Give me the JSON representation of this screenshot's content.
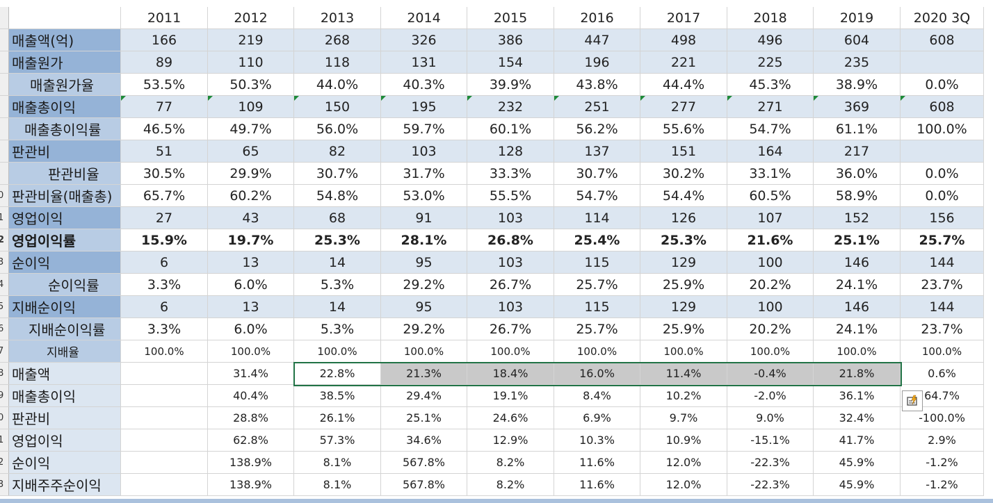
{
  "columns": [
    "2011",
    "2012",
    "2013",
    "2014",
    "2015",
    "2016",
    "2017",
    "2018",
    "2019",
    "2020 3Q"
  ],
  "rows": [
    {
      "num": "",
      "label": "매출액(억)",
      "values": [
        "166",
        "219",
        "268",
        "326",
        "386",
        "447",
        "498",
        "496",
        "604",
        "608"
      ]
    },
    {
      "num": "",
      "label": "매출원가",
      "values": [
        "89",
        "110",
        "118",
        "131",
        "154",
        "196",
        "221",
        "225",
        "235",
        ""
      ]
    },
    {
      "num": "",
      "label": "매출원가율",
      "values": [
        "53.5%",
        "50.3%",
        "44.0%",
        "40.3%",
        "39.9%",
        "43.8%",
        "44.4%",
        "45.3%",
        "38.9%",
        "0.0%"
      ]
    },
    {
      "num": "",
      "label": "매출총이익",
      "values": [
        "77",
        "109",
        "150",
        "195",
        "232",
        "251",
        "277",
        "271",
        "369",
        "608"
      ]
    },
    {
      "num": "",
      "label": "매출총이익률",
      "values": [
        "46.5%",
        "49.7%",
        "56.0%",
        "59.7%",
        "60.1%",
        "56.2%",
        "55.6%",
        "54.7%",
        "61.1%",
        "100.0%"
      ]
    },
    {
      "num": "",
      "label": "판관비",
      "values": [
        "51",
        "65",
        "82",
        "103",
        "128",
        "137",
        "151",
        "164",
        "217",
        ""
      ]
    },
    {
      "num": "",
      "label": "판관비율",
      "values": [
        "30.5%",
        "29.9%",
        "30.7%",
        "31.7%",
        "33.3%",
        "30.7%",
        "30.2%",
        "33.1%",
        "36.0%",
        "0.0%"
      ]
    },
    {
      "num": "0",
      "label": "판관비율(매출총)",
      "values": [
        "65.7%",
        "60.2%",
        "54.8%",
        "53.0%",
        "55.5%",
        "54.7%",
        "54.4%",
        "60.5%",
        "58.9%",
        "0.0%"
      ]
    },
    {
      "num": "1",
      "label": "영업이익",
      "values": [
        "27",
        "43",
        "68",
        "91",
        "103",
        "114",
        "126",
        "107",
        "152",
        "156"
      ]
    },
    {
      "num": "2",
      "label": "영업이익률",
      "values": [
        "15.9%",
        "19.7%",
        "25.3%",
        "28.1%",
        "26.8%",
        "25.4%",
        "25.3%",
        "21.6%",
        "25.1%",
        "25.7%"
      ]
    },
    {
      "num": "3",
      "label": "순이익",
      "values": [
        "6",
        "13",
        "14",
        "95",
        "103",
        "115",
        "129",
        "100",
        "146",
        "144"
      ]
    },
    {
      "num": "4",
      "label": "순이익률",
      "values": [
        "3.3%",
        "6.0%",
        "5.3%",
        "29.2%",
        "26.7%",
        "25.7%",
        "25.9%",
        "20.2%",
        "24.1%",
        "23.7%"
      ]
    },
    {
      "num": "5",
      "label": "지배순이익",
      "values": [
        "6",
        "13",
        "14",
        "95",
        "103",
        "115",
        "129",
        "100",
        "146",
        "144"
      ]
    },
    {
      "num": "6",
      "label": "지배순이익률",
      "values": [
        "3.3%",
        "6.0%",
        "5.3%",
        "29.2%",
        "26.7%",
        "25.7%",
        "25.9%",
        "20.2%",
        "24.1%",
        "23.7%"
      ]
    },
    {
      "num": "7",
      "label": "지배율",
      "values": [
        "100.0%",
        "100.0%",
        "100.0%",
        "100.0%",
        "100.0%",
        "100.0%",
        "100.0%",
        "100.0%",
        "100.0%",
        "100.0%"
      ]
    },
    {
      "num": "8",
      "label": "매출액",
      "values": [
        "",
        "31.4%",
        "22.8%",
        "21.3%",
        "18.4%",
        "16.0%",
        "11.4%",
        "-0.4%",
        "21.8%",
        "0.6%"
      ]
    },
    {
      "num": "9",
      "label": "매출총이익",
      "values": [
        "",
        "40.4%",
        "38.5%",
        "29.4%",
        "19.1%",
        "8.4%",
        "10.2%",
        "-2.0%",
        "36.1%",
        "64.7%"
      ]
    },
    {
      "num": "0",
      "label": "판관비",
      "values": [
        "",
        "28.8%",
        "26.1%",
        "25.1%",
        "24.6%",
        "6.9%",
        "9.7%",
        "9.0%",
        "32.4%",
        "-100.0%"
      ]
    },
    {
      "num": "1",
      "label": "영업이익",
      "values": [
        "",
        "62.8%",
        "57.3%",
        "34.6%",
        "12.9%",
        "10.3%",
        "10.9%",
        "-15.1%",
        "41.7%",
        "2.9%"
      ]
    },
    {
      "num": "2",
      "label": "순이익",
      "values": [
        "",
        "138.9%",
        "8.1%",
        "567.8%",
        "8.2%",
        "11.6%",
        "12.0%",
        "-22.3%",
        "45.9%",
        "-1.2%"
      ]
    },
    {
      "num": "3",
      "label": "지배주주순이익",
      "values": [
        "",
        "138.9%",
        "8.1%",
        "567.8%",
        "8.2%",
        "11.6%",
        "12.0%",
        "-22.3%",
        "45.9%",
        "-1.2%"
      ]
    }
  ],
  "quick_analysis_icon": "quick-analysis-icon",
  "colors": {
    "header_dark": "#95b3d7",
    "header_light": "#b8cce4",
    "band": "#dce6f1",
    "selection": "#217346",
    "selected_fill": "#c9c9c9"
  }
}
